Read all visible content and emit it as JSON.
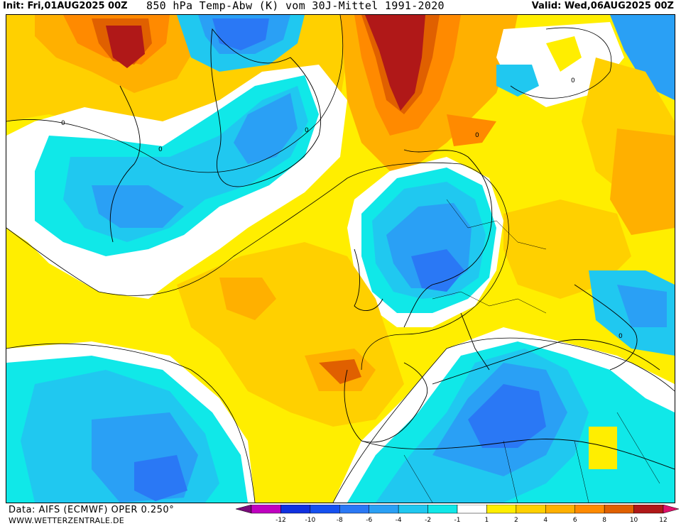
{
  "header": {
    "init": "Init: Fri,01AUG2025 00Z",
    "title": "850 hPa Temp-Abw (K) vom 30J-Mittel 1991-2020",
    "valid": "Valid: Wed,06AUG2025 00Z"
  },
  "footer": {
    "data_source": "Data: AIFS (ECMWF) OPER 0.250°",
    "website": "WWW.WETTERZENTRALE.DE"
  },
  "legend": {
    "colors": [
      "#7a0a7a",
      "#c000c0",
      "#1030e0",
      "#1650f0",
      "#2a78f5",
      "#2aa0f5",
      "#20c8f0",
      "#10e8e8",
      "#ffffff",
      "#ffee00",
      "#ffd000",
      "#ffb000",
      "#ff8a00",
      "#e06000",
      "#b01818",
      "#e0106a"
    ],
    "tick_labels": [
      "-12",
      "-10",
      "-8",
      "-6",
      "-4",
      "-2",
      "-1",
      "1",
      "2",
      "4",
      "6",
      "8",
      "10",
      "12"
    ]
  },
  "map": {
    "contour_label": "0",
    "colors": {
      "warm_1": "#ffee00",
      "warm_2": "#ffd000",
      "warm_4": "#ffb000",
      "warm_6": "#ff8a00",
      "warm_8": "#e06000",
      "warm_10": "#b01818",
      "cold_1": "#10e8e8",
      "cold_2": "#20c8f0",
      "cold_4": "#2aa0f5",
      "cold_6": "#2a78f5",
      "cold_8": "#1650f0",
      "neutral": "#ffffff"
    }
  }
}
